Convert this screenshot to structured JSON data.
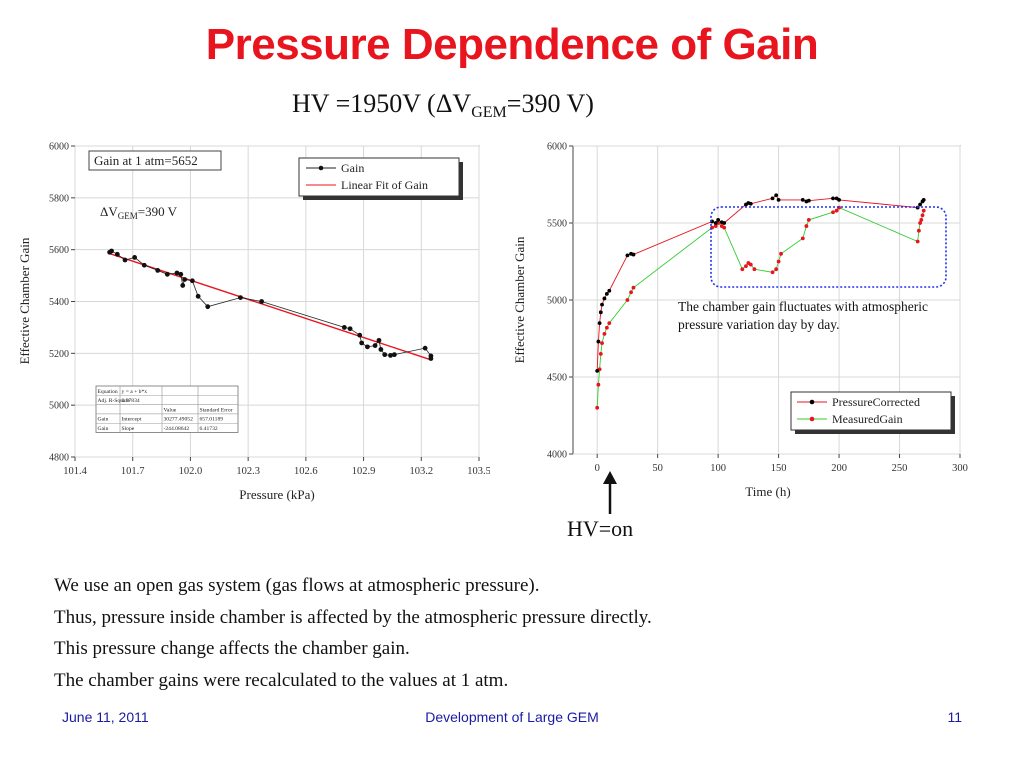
{
  "slide": {
    "title": "Pressure Dependence of Gain",
    "subtitle_prefix": "HV =1950V (ΔV",
    "subtitle_sub": "GEM",
    "subtitle_suffix": "=390 V)",
    "hv_on_label": "HV=on",
    "body_lines": [
      "We use an open gas system (gas flows at atmospheric pressure).",
      "Thus, pressure inside chamber is affected by the atmospheric pressure directly.",
      "This pressure change affects the chamber gain.",
      "The chamber gains were recalculated to the values at 1 atm."
    ],
    "footer": {
      "date": "June 11, 2011",
      "center": "Development of Large GEM",
      "page": "11"
    }
  },
  "chart_data": [
    {
      "type": "line",
      "xlabel": "Pressure (kPa)",
      "ylabel": "Effective Chamber Gain",
      "xlim": [
        101.4,
        103.5
      ],
      "ylim": [
        4800,
        6000
      ],
      "xticks": [
        "101.4",
        "101.7",
        "102.0",
        "102.3",
        "102.6",
        "102.9",
        "103.2",
        "103.5"
      ],
      "yticks": [
        "4800",
        "5000",
        "5200",
        "5400",
        "5600",
        "5800",
        "6000"
      ],
      "grid": true,
      "legend_position": "top-right",
      "annotations": {
        "gain_at_1atm": "Gain at 1 atm=5652",
        "delta_v_prefix": "ΔV",
        "delta_v_sub": "GEM",
        "delta_v_suffix": "=390 V"
      },
      "series": [
        {
          "name": "Gain",
          "color": "#222222",
          "x": [
            101.58,
            101.59,
            101.62,
            101.66,
            101.71,
            101.76,
            101.83,
            101.88,
            101.93,
            101.95,
            101.96,
            101.97,
            102.01,
            102.04,
            102.09,
            102.26,
            102.37,
            102.8,
            102.83,
            102.88,
            102.89,
            102.92,
            102.96,
            102.98,
            102.99,
            103.01,
            103.04,
            103.06,
            103.22,
            103.25,
            103.25
          ],
          "y": [
            5590,
            5595,
            5582,
            5560,
            5570,
            5540,
            5520,
            5505,
            5510,
            5505,
            5462,
            5485,
            5480,
            5420,
            5380,
            5415,
            5400,
            5300,
            5295,
            5270,
            5240,
            5225,
            5230,
            5250,
            5215,
            5195,
            5192,
            5195,
            5220,
            5190,
            5180
          ]
        },
        {
          "name": "Linear Fit of Gain",
          "color": "#e8141e",
          "x": [
            101.58,
            103.25
          ],
          "y": [
            5585,
            5175
          ]
        }
      ],
      "fit_table": {
        "rows": [
          [
            "Equation",
            "y = a + b*x",
            "",
            ""
          ],
          [
            "Adj. R-Square",
            "0.97834",
            "",
            ""
          ],
          [
            "",
            "",
            "Value",
            "Standard Error"
          ],
          [
            "Gain",
            "Intercept",
            "30277.49052",
            "657.01189"
          ],
          [
            "Gain",
            "Slope",
            "-244.08642",
            "6.41732"
          ]
        ]
      }
    },
    {
      "type": "line",
      "xlabel": "Time (h)",
      "ylabel": "Effective Chamber Gain",
      "xlim": [
        -20,
        300
      ],
      "ylim": [
        4000,
        6000
      ],
      "xticks": [
        "0",
        "50",
        "100",
        "150",
        "200",
        "250",
        "300"
      ],
      "yticks": [
        "4000",
        "4500",
        "5000",
        "5500",
        "6000"
      ],
      "grid": true,
      "legend_position": "bottom-right",
      "annotation": "The chamber gain fluctuates with atmospheric pressure variation day by day.",
      "series": [
        {
          "name": "PressureCorrected",
          "color": "#e8141e",
          "marker_color": "#000000",
          "x": [
            0,
            1,
            2,
            3,
            4,
            6,
            8,
            10,
            25,
            28,
            30,
            95,
            98,
            100,
            103,
            105,
            123,
            125,
            127,
            145,
            148,
            150,
            170,
            173,
            175,
            195,
            198,
            200,
            265,
            267,
            269,
            270
          ],
          "y": [
            4540,
            4730,
            4850,
            4920,
            4970,
            5010,
            5040,
            5060,
            5290,
            5300,
            5295,
            5510,
            5500,
            5520,
            5505,
            5500,
            5620,
            5630,
            5625,
            5660,
            5680,
            5650,
            5650,
            5640,
            5645,
            5660,
            5660,
            5650,
            5600,
            5620,
            5640,
            5650
          ]
        },
        {
          "name": "MeasuredGain",
          "color": "#33cc33",
          "marker_color": "#e8141e",
          "x": [
            0,
            1,
            2,
            3,
            4,
            6,
            8,
            10,
            25,
            28,
            30,
            95,
            98,
            100,
            103,
            105,
            120,
            123,
            125,
            127,
            130,
            145,
            148,
            150,
            152,
            170,
            173,
            175,
            195,
            198,
            200,
            265,
            266,
            267,
            268,
            269,
            270
          ],
          "y": [
            4300,
            4450,
            4550,
            4650,
            4720,
            4780,
            4820,
            4850,
            5000,
            5050,
            5080,
            5470,
            5480,
            5500,
            5480,
            5470,
            5200,
            5220,
            5240,
            5230,
            5200,
            5180,
            5200,
            5250,
            5300,
            5400,
            5480,
            5520,
            5570,
            5580,
            5600,
            5380,
            5450,
            5500,
            5520,
            5550,
            5580
          ]
        }
      ]
    }
  ]
}
